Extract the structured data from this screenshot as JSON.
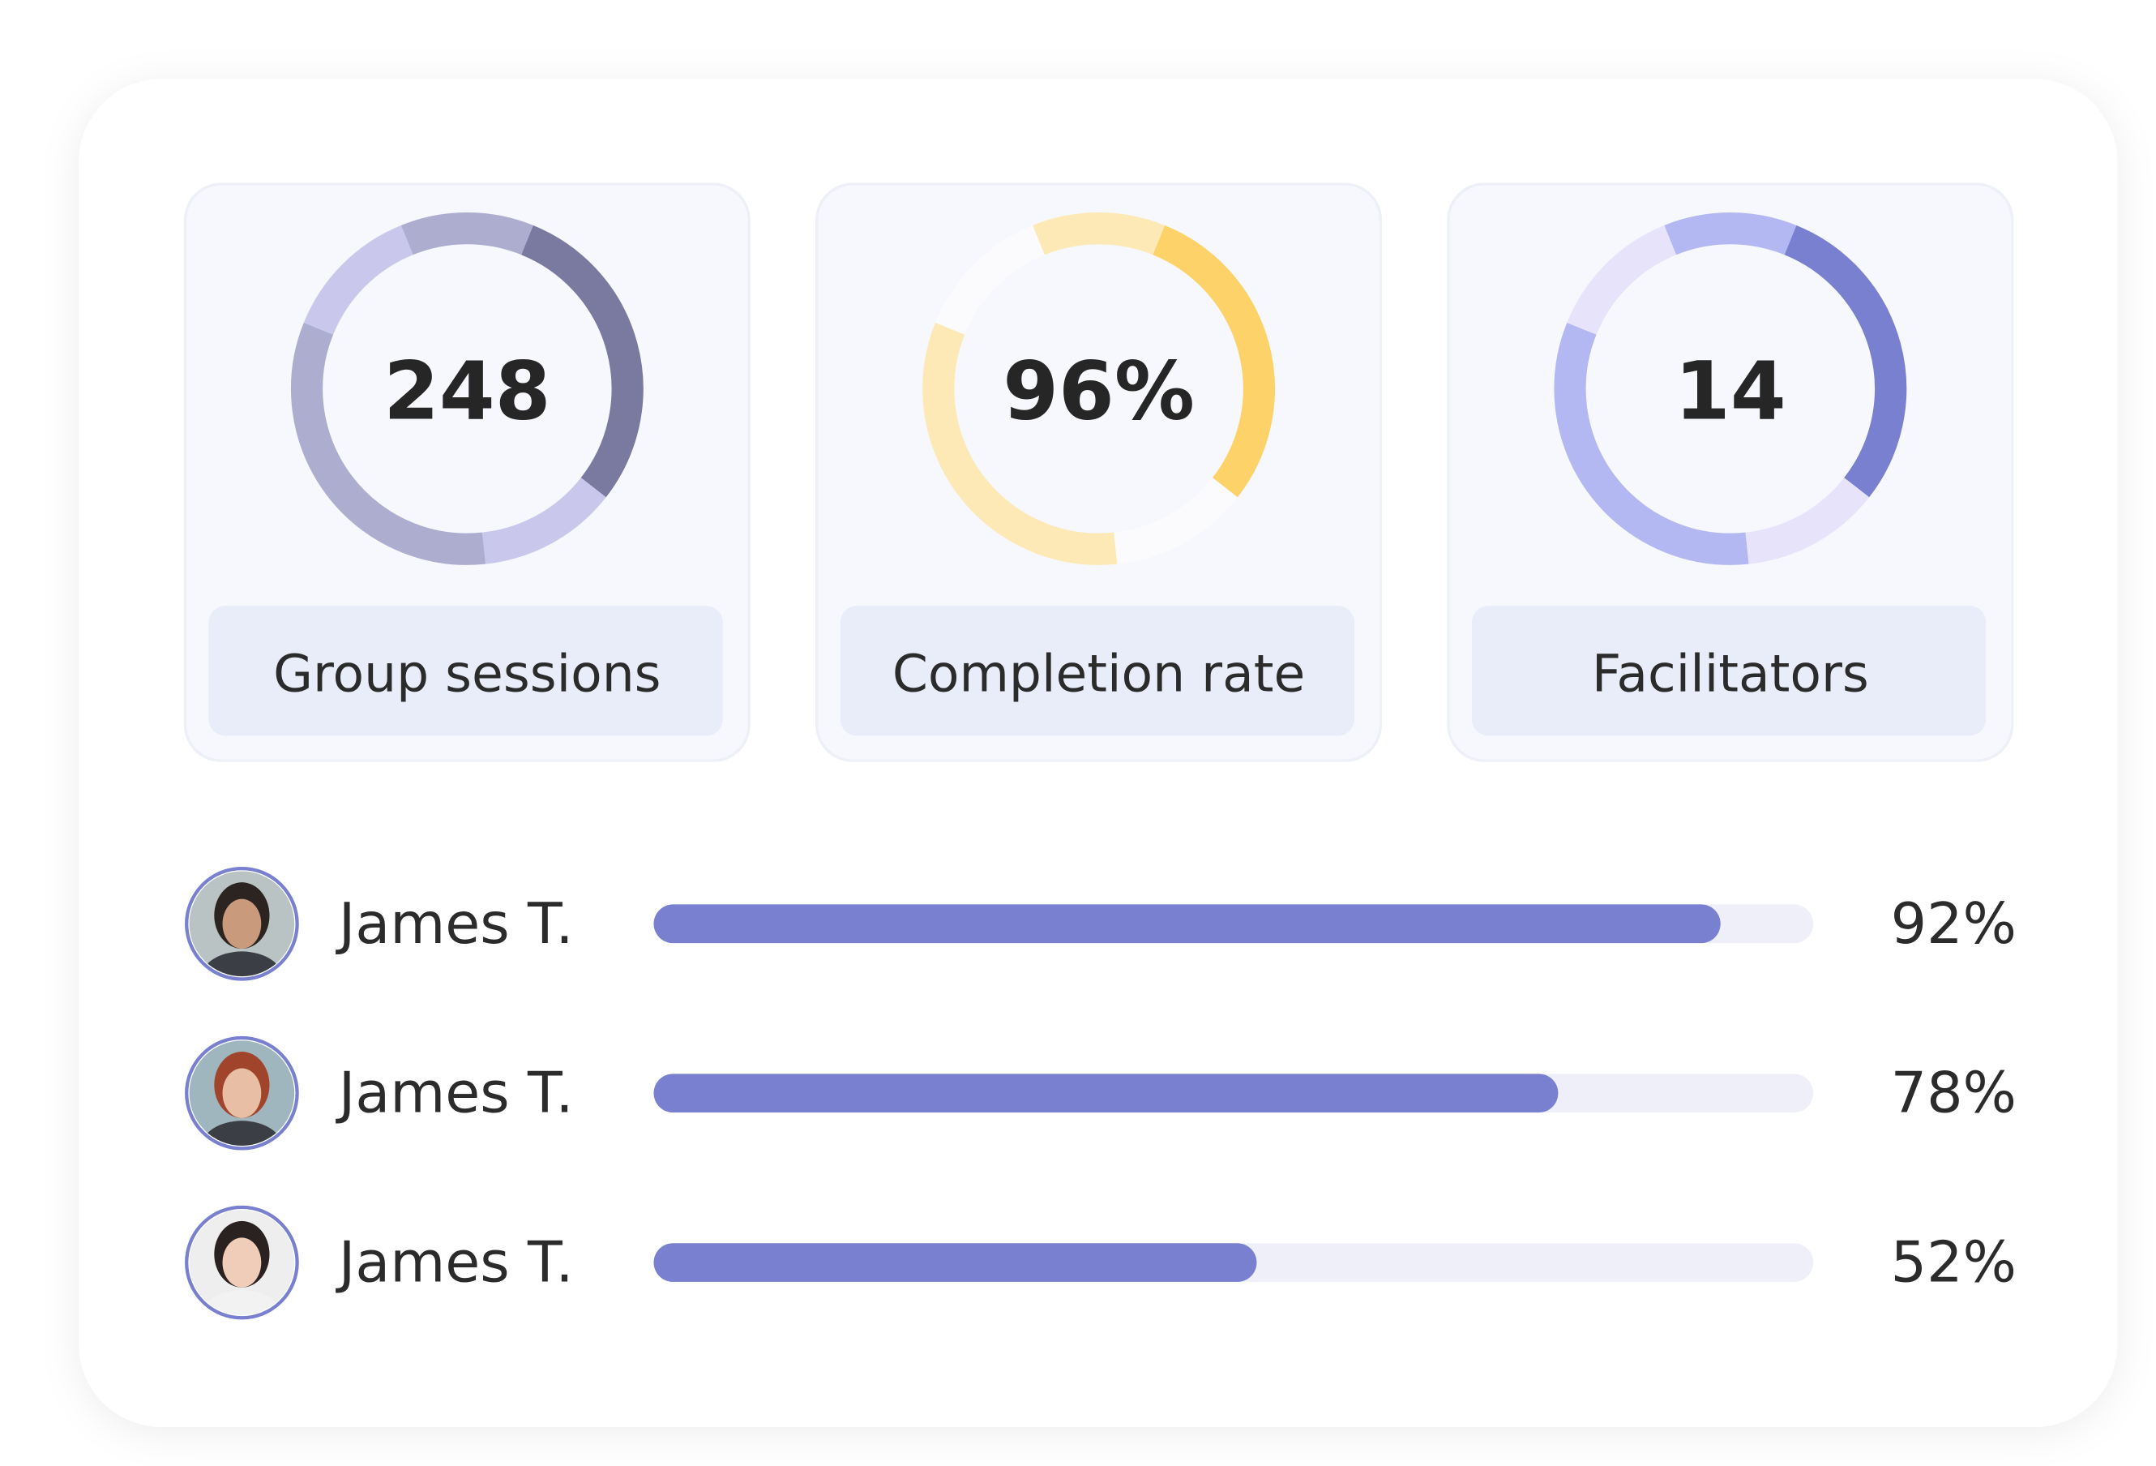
{
  "cards": [
    {
      "value": "248",
      "label": "Group sessions"
    },
    {
      "value": "96%",
      "label": "Completion rate"
    },
    {
      "value": "14",
      "label": "Facilitators"
    }
  ],
  "rows": [
    {
      "name": "James T.",
      "value": 92,
      "value_label": "92%"
    },
    {
      "name": "James T.",
      "value": 78,
      "value_label": "78%"
    },
    {
      "name": "James T.",
      "value": 52,
      "value_label": "52%"
    }
  ]
}
